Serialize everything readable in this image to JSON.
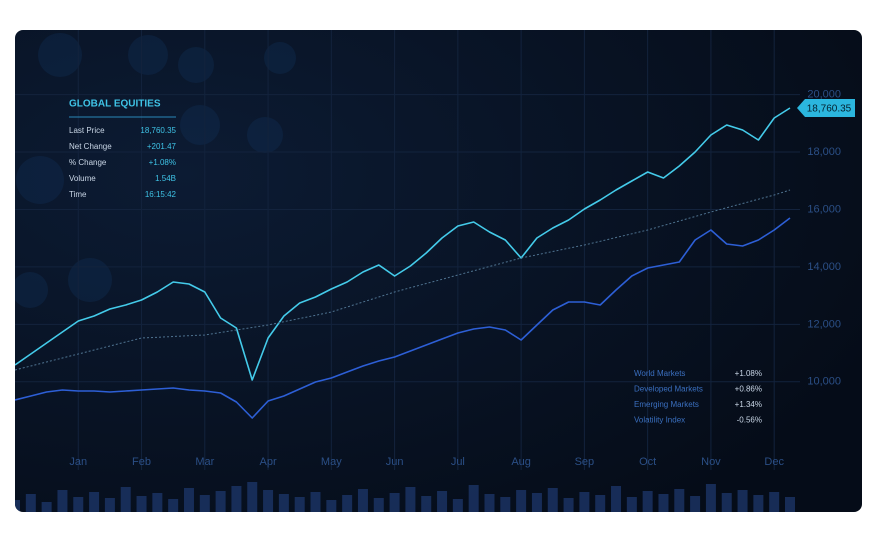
{
  "chart_data": {
    "type": "line",
    "categories": [
      null,
      null,
      null,
      null,
      "Jan",
      null,
      null,
      null,
      "Feb",
      null,
      null,
      null,
      "Mar",
      null,
      null,
      null,
      "Apr",
      null,
      null,
      null,
      "May",
      null,
      null,
      null,
      "Jun",
      null,
      null,
      null,
      "Jul",
      null,
      null,
      null,
      "Aug",
      null,
      null,
      null,
      "Sep",
      null,
      null,
      null,
      "Oct",
      null,
      null,
      null,
      "Nov",
      null,
      null,
      null,
      "Dec",
      null
    ],
    "series": [
      {
        "color": "#44cbea",
        "style": "solid",
        "values": [
          10585,
          10968,
          11351,
          11734,
          12117,
          12291,
          12535,
          12674,
          12848,
          13127,
          13475,
          13405,
          13127,
          12222,
          11873,
          10063,
          11525,
          12291,
          12744,
          12953,
          13231,
          13475,
          13823,
          14067,
          13684,
          14032,
          14484,
          15007,
          15424,
          15564,
          15215,
          14937,
          14310,
          15007,
          15355,
          15633,
          16016,
          16330,
          16678,
          16991,
          17305,
          17096,
          17514,
          18001,
          18593,
          18941,
          18767,
          18419,
          19185,
          19533
        ]
      },
      {
        "color": "#4f7390",
        "style": "dashed",
        "values": [
          10411,
          10550,
          10690,
          10829,
          10968,
          11107,
          11246,
          11386,
          11525,
          11551,
          11577,
          11604,
          11630,
          11717,
          11804,
          11891,
          11978,
          12091,
          12204,
          12317,
          12430,
          12604,
          12778,
          12953,
          13127,
          13275,
          13422,
          13570,
          13718,
          13866,
          14014,
          14162,
          14310,
          14423,
          14536,
          14650,
          14763,
          14893,
          15024,
          15154,
          15285,
          15442,
          15598,
          15755,
          15912,
          16060,
          16208,
          16356,
          16504,
          16678
        ]
      },
      {
        "color": "#2d5fd6",
        "style": "solid",
        "values": [
          9367,
          9506,
          9645,
          9715,
          9680,
          9680,
          9645,
          9680,
          9715,
          9750,
          9784,
          9715,
          9680,
          9611,
          9297,
          8740,
          9332,
          9506,
          9750,
          9993,
          10133,
          10342,
          10550,
          10724,
          10864,
          11073,
          11282,
          11490,
          11699,
          11838,
          11908,
          11804,
          11455,
          11978,
          12500,
          12778,
          12778,
          12674,
          13196,
          13684,
          13962,
          14067,
          14171,
          14937,
          15285,
          14798,
          14728,
          14937,
          15285,
          15703
        ]
      }
    ],
    "volume": [
      12,
      18,
      10,
      22,
      15,
      20,
      14,
      25,
      16,
      19,
      13,
      24,
      17,
      21,
      26,
      30,
      22,
      18,
      15,
      20,
      12,
      17,
      23,
      14,
      19,
      25,
      16,
      21,
      13,
      27,
      18,
      15,
      22,
      19,
      24,
      14,
      20,
      17,
      26,
      15,
      21,
      18,
      23,
      16,
      28,
      19,
      22,
      17,
      20,
      15
    ],
    "volume_color": "#1c3566",
    "ylim": [
      7800,
      21900
    ],
    "yticks": [
      {
        "value": 10000,
        "label": "10,000"
      },
      {
        "value": 12000,
        "label": "12,000"
      },
      {
        "value": 14000,
        "label": "14,000"
      },
      {
        "value": 16000,
        "label": "16,000"
      },
      {
        "value": 18000,
        "label": "18,000"
      },
      {
        "value": 20000,
        "label": "20,000"
      }
    ],
    "grid": true,
    "last_price_tag": "18,760.35"
  },
  "panel": {
    "title": "GLOBAL EQUITIES",
    "rows": [
      [
        "Last Price",
        "18,760.35"
      ],
      [
        "Net Change",
        "+201.47"
      ],
      [
        "% Change",
        "+1.08%"
      ],
      [
        "Volume",
        "1.54B"
      ],
      [
        "Time",
        "16:15:42"
      ]
    ]
  },
  "markets": {
    "rows": [
      [
        "World Markets",
        "+1.08%"
      ],
      [
        "Developed Markets",
        "+0.86%"
      ],
      [
        "Emerging Markets",
        "+1.34%"
      ],
      [
        "Volatility Index",
        "-0.56%"
      ]
    ]
  }
}
